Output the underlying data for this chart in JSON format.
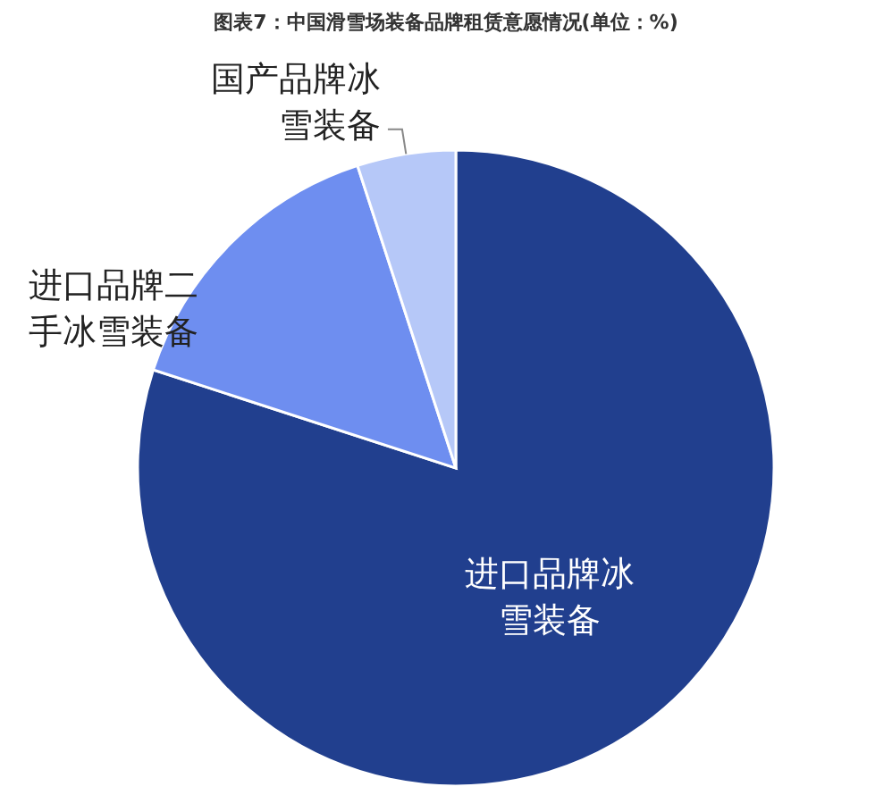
{
  "chart_data": {
    "type": "pie",
    "title": "图表7：中国滑雪场装备品牌租赁意愿情况(单位：%)",
    "categories": [
      "进口品牌冰雪装备",
      "进口品牌二手冰雪装备",
      "国产品牌冰雪装备"
    ],
    "values": [
      80,
      15,
      5
    ],
    "colors": [
      "#213f8e",
      "#6e8ef0",
      "#b6c8f8"
    ]
  }
}
